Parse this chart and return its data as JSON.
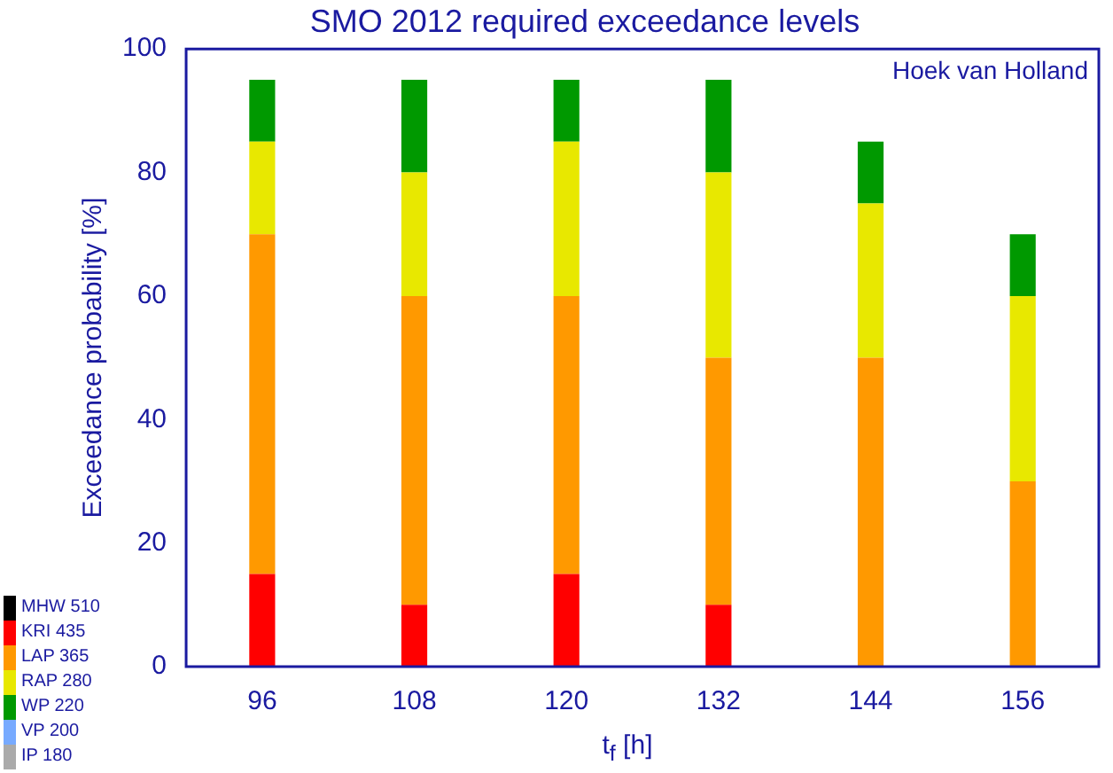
{
  "chart_data": {
    "type": "bar",
    "title": "SMO 2012 required exceedance levels",
    "xlabel": "t$_{f}$ [h]",
    "ylabel": "Exceedance probability [%]",
    "annotations": [
      "Hoek van Holland"
    ],
    "categories": [
      "96",
      "108",
      "120",
      "132",
      "144",
      "156"
    ],
    "stacked": true,
    "ylim": [
      0,
      100
    ],
    "yticks": [
      0,
      20,
      40,
      60,
      80,
      100
    ],
    "grid": false,
    "legend": "bottom left",
    "series": [
      {
        "name": "MHW 510",
        "color": "#000000",
        "values": [
          0,
          0,
          0,
          0,
          0,
          0
        ]
      },
      {
        "name": "KRI 435",
        "color": "#ff0000",
        "values": [
          15,
          10,
          15,
          10,
          0,
          0
        ]
      },
      {
        "name": "LAP 365",
        "color": "#ff9900",
        "values": [
          55,
          50,
          45,
          40,
          50,
          30
        ]
      },
      {
        "name": "RAP 280",
        "color": "#e8e800",
        "values": [
          15,
          20,
          25,
          30,
          25,
          30
        ]
      },
      {
        "name": "WP 220",
        "color": "#009900",
        "values": [
          10,
          15,
          10,
          15,
          10,
          10
        ]
      },
      {
        "name": "VP 200",
        "color": "#77aaff",
        "values": [
          0,
          0,
          0,
          0,
          0,
          0
        ]
      },
      {
        "name": "IP 180",
        "color": "#aaaaaa",
        "values": [
          0,
          0,
          0,
          0,
          0,
          0
        ]
      }
    ]
  }
}
